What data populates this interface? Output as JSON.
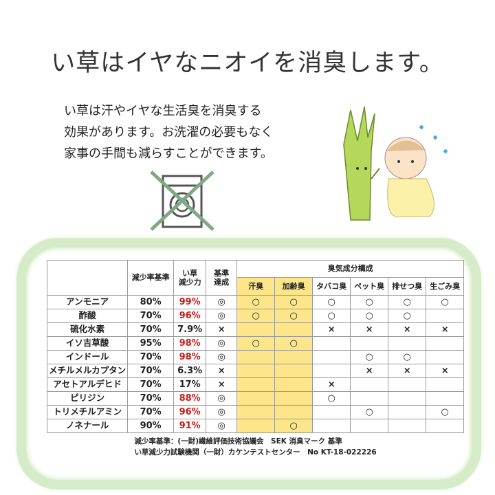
{
  "title": "い草はイヤなニオイを消臭します。",
  "paragraph": [
    "い草は汗やイヤな生活臭を消臭する",
    "効果があります。お洗濯の必要もなく",
    "家事の手間も減らすことができます。"
  ],
  "table": {
    "headers": {
      "standard": "減少率基準",
      "reduction": [
        "い草",
        "減少力"
      ],
      "achieved": [
        "基準",
        "達成"
      ],
      "group": "臭気成分構成",
      "odors": [
        "汗臭",
        "加齢臭",
        "タバコ臭",
        "ペット臭",
        "排せつ臭",
        "生ごみ臭"
      ]
    },
    "highlight_color": "#fde58a",
    "rows": [
      {
        "name": "アンモニア",
        "standard": "80%",
        "reduction": "99%",
        "red": true,
        "achieved": "◎",
        "marks": [
          "○",
          "○",
          "○",
          "○",
          "○",
          "○"
        ]
      },
      {
        "name": "酢酸",
        "standard": "70%",
        "reduction": "96%",
        "red": true,
        "achieved": "◎",
        "marks": [
          "○",
          "○",
          "○",
          "○",
          "○",
          ""
        ]
      },
      {
        "name": "硫化水素",
        "standard": "70%",
        "reduction": "7.9%",
        "red": false,
        "achieved": "×",
        "marks": [
          "",
          "",
          "×",
          "×",
          "×",
          "×"
        ]
      },
      {
        "name": "イソ吉草酸",
        "standard": "95%",
        "reduction": "98%",
        "red": true,
        "achieved": "◎",
        "marks": [
          "○",
          "○",
          "",
          "",
          "",
          ""
        ]
      },
      {
        "name": "インドール",
        "standard": "70%",
        "reduction": "98%",
        "red": true,
        "achieved": "◎",
        "marks": [
          "",
          "",
          "",
          "○",
          "○",
          ""
        ]
      },
      {
        "name": "メチルメルカプタン",
        "standard": "70%",
        "reduction": "6.3%",
        "red": false,
        "achieved": "×",
        "marks": [
          "",
          "",
          "",
          "×",
          "×",
          "×"
        ]
      },
      {
        "name": "アセトアルデヒド",
        "standard": "70%",
        "reduction": "17%",
        "red": false,
        "achieved": "×",
        "marks": [
          "",
          "",
          "×",
          "",
          "",
          ""
        ]
      },
      {
        "name": "ピリジン",
        "standard": "70%",
        "reduction": "88%",
        "red": true,
        "achieved": "◎",
        "marks": [
          "",
          "",
          "○",
          "",
          "",
          ""
        ]
      },
      {
        "name": "トリメチルアミン",
        "standard": "70%",
        "reduction": "96%",
        "red": true,
        "achieved": "◎",
        "marks": [
          "",
          "",
          "",
          "○",
          "",
          "○"
        ]
      },
      {
        "name": "ノネナール",
        "standard": "90%",
        "reduction": "91%",
        "red": true,
        "achieved": "◎",
        "marks": [
          "",
          "○",
          "",
          "",
          "",
          ""
        ]
      }
    ]
  },
  "footer": [
    "減少率基準：(一財)繊維評価技術協議会　SEK 消臭マーク 基準",
    "い草減少力試験機関（一財）カケンテストセンター　No KT-18-022226"
  ]
}
